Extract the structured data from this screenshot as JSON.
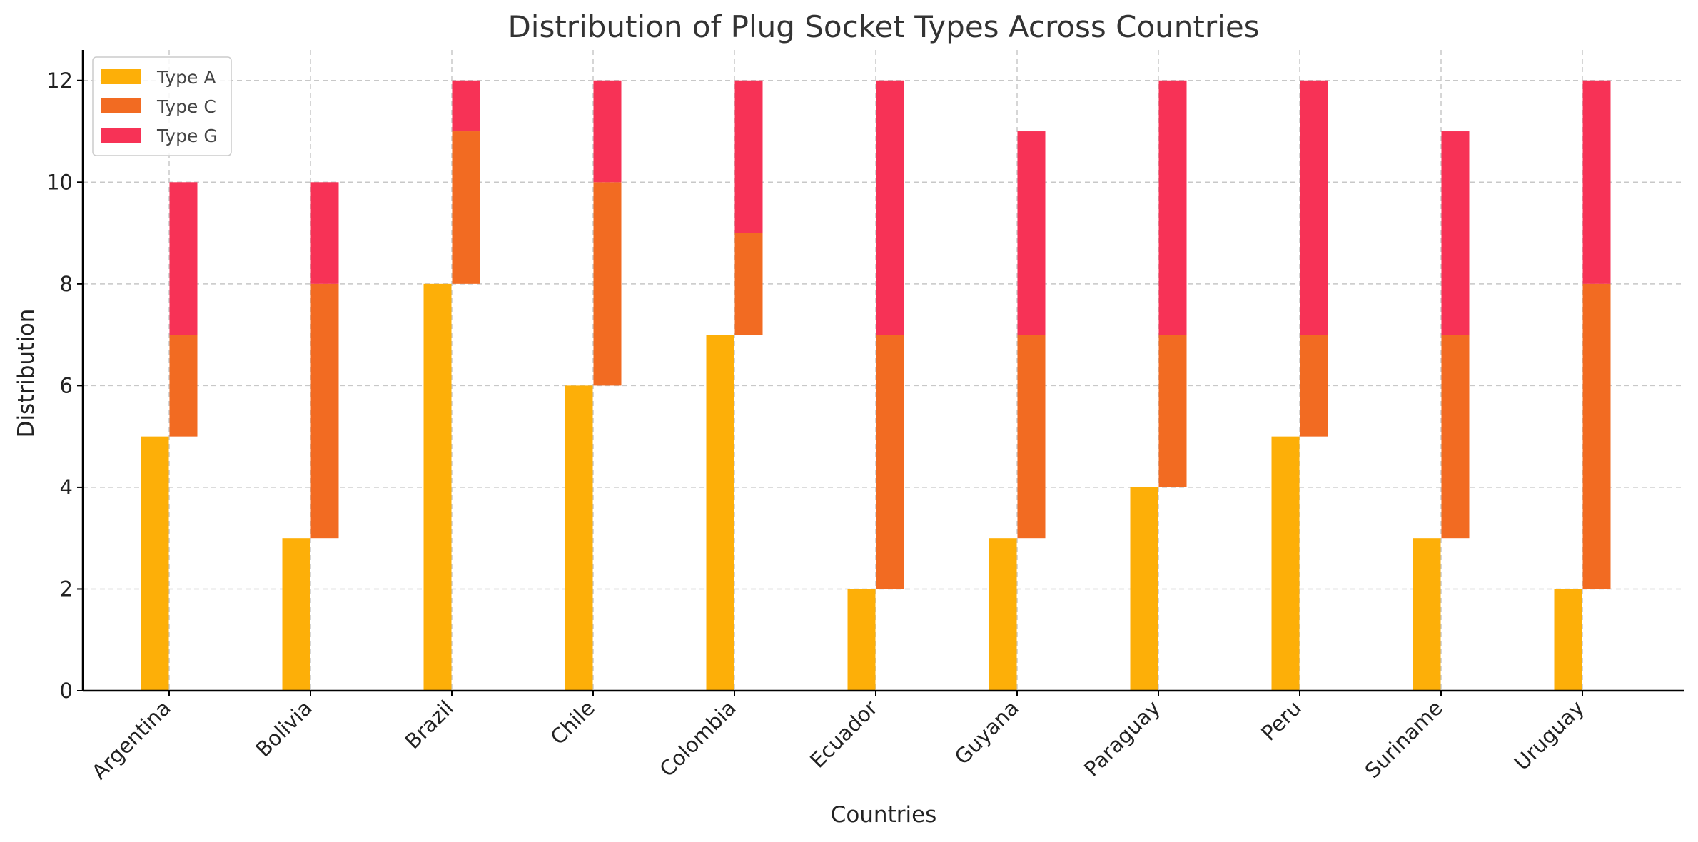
{
  "chart_data": {
    "type": "bar",
    "title": "Distribution of Plug Socket Types Across Countries",
    "xlabel": "Countries",
    "ylabel": "Distribution",
    "categories": [
      "Argentina",
      "Bolivia",
      "Brazil",
      "Chile",
      "Colombia",
      "Ecuador",
      "Guyana",
      "Paraguay",
      "Peru",
      "Suriname",
      "Uruguay"
    ],
    "series": [
      {
        "name": "Type A",
        "color": "#FDAF08",
        "values": [
          5,
          3,
          8,
          6,
          7,
          2,
          3,
          4,
          5,
          3,
          2
        ]
      },
      {
        "name": "Type C",
        "color": "#F26B22",
        "values": [
          2,
          5,
          3,
          4,
          2,
          5,
          4,
          3,
          2,
          4,
          6
        ]
      },
      {
        "name": "Type G",
        "color": "#F73256",
        "values": [
          3,
          2,
          1,
          2,
          3,
          5,
          4,
          5,
          5,
          4,
          4
        ]
      }
    ],
    "ylim": [
      0,
      12.6
    ],
    "yticks": [
      0,
      2,
      4,
      6,
      8,
      10,
      12
    ],
    "grid": true,
    "legend_position": "top-left",
    "layout_note": "Each series is drawn as a narrow staggered column; later series start where the previous series ends (stacked values)."
  }
}
